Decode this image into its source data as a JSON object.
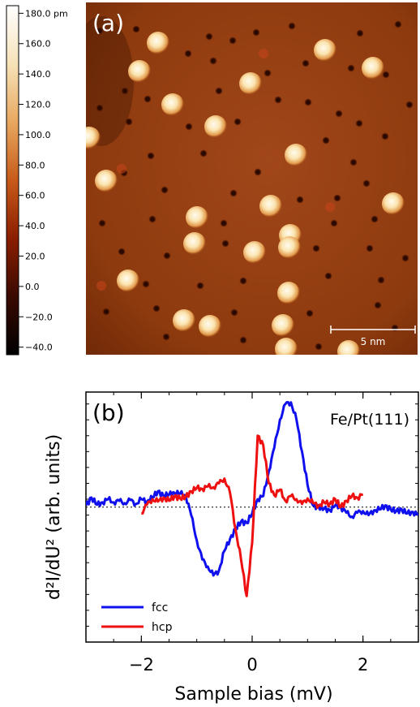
{
  "panel_a": {
    "label": "(a)",
    "scalebar_label": "5 nm",
    "colorbar_ticks": [
      "180.0 pm",
      "160.0",
      "140.0",
      "120.0",
      "100.0",
      "80.0",
      "60.0",
      "40.0",
      "20.0",
      "0.0",
      "−20.0",
      "−40.0"
    ],
    "colorbar_values": [
      180,
      160,
      140,
      120,
      100,
      80,
      60,
      40,
      20,
      0,
      -20,
      -40
    ],
    "colorbar_range": [
      -45,
      185
    ],
    "colormap": [
      "#000000",
      "#3a0a00",
      "#8b1e00",
      "#c75a1a",
      "#e8a860",
      "#f6e2b8",
      "#ffffff"
    ],
    "substrate_color": "#8c3a0c",
    "adatom_color": "#fff3d6"
  },
  "panel_b": {
    "label": "(b)",
    "sample_label": "Fe/Pt(111)"
  },
  "chart_data": {
    "type": "line",
    "xlabel": "Sample bias (mV)",
    "ylabel": "d²I/dU² (arb. units)",
    "xlim": [
      -3,
      3
    ],
    "ylim": [
      -1.7,
      1.45
    ],
    "xticks": [
      -2,
      0,
      2
    ],
    "baseline": 0,
    "series": [
      {
        "name": "fcc",
        "color": "#1010ee",
        "x": [
          -3.0,
          -2.9,
          -2.8,
          -2.7,
          -2.6,
          -2.5,
          -2.4,
          -2.3,
          -2.2,
          -2.1,
          -2.0,
          -1.9,
          -1.8,
          -1.7,
          -1.6,
          -1.5,
          -1.4,
          -1.3,
          -1.2,
          -1.1,
          -1.0,
          -0.9,
          -0.8,
          -0.7,
          -0.6,
          -0.5,
          -0.4,
          -0.3,
          -0.2,
          -0.1,
          0.0,
          0.1,
          0.2,
          0.3,
          0.4,
          0.5,
          0.6,
          0.7,
          0.8,
          0.9,
          1.0,
          1.1,
          1.2,
          1.3,
          1.4,
          1.5,
          1.6,
          1.7,
          1.8,
          1.9,
          2.0,
          2.1,
          2.2,
          2.3,
          2.4,
          2.5,
          2.6,
          2.7,
          2.8,
          2.9,
          3.0
        ],
        "y": [
          0.02,
          0.12,
          0.03,
          0.06,
          0.1,
          0.06,
          0.08,
          0.05,
          0.09,
          0.04,
          0.1,
          0.07,
          0.12,
          0.2,
          0.14,
          0.16,
          0.18,
          0.17,
          0.15,
          -0.1,
          -0.42,
          -0.66,
          -0.75,
          -0.86,
          -0.8,
          -0.55,
          -0.4,
          -0.28,
          -0.18,
          -0.2,
          -0.08,
          0.1,
          0.14,
          0.45,
          0.75,
          1.1,
          1.3,
          1.32,
          1.1,
          0.7,
          0.28,
          0.02,
          0.0,
          -0.02,
          -0.04,
          0.02,
          0.0,
          -0.07,
          -0.12,
          -0.07,
          -0.05,
          -0.1,
          -0.04,
          -0.03,
          0.02,
          -0.03,
          -0.05,
          -0.03,
          -0.08,
          -0.06,
          -0.1
        ]
      },
      {
        "name": "hcp",
        "color": "#ee1010",
        "x": [
          -2.0,
          -1.9,
          -1.8,
          -1.7,
          -1.6,
          -1.5,
          -1.4,
          -1.3,
          -1.2,
          -1.1,
          -1.0,
          -0.9,
          -0.8,
          -0.7,
          -0.6,
          -0.5,
          -0.4,
          -0.3,
          -0.2,
          -0.1,
          0.0,
          0.1,
          0.2,
          0.3,
          0.4,
          0.5,
          0.6,
          0.7,
          0.8,
          0.9,
          1.0,
          1.1,
          1.2,
          1.3,
          1.4,
          1.5,
          1.6,
          1.7,
          1.8,
          1.9,
          2.0
        ],
        "y": [
          -0.08,
          0.03,
          0.1,
          0.07,
          0.12,
          0.08,
          0.14,
          0.11,
          0.13,
          0.2,
          0.24,
          0.23,
          0.26,
          0.25,
          0.3,
          0.36,
          0.18,
          -0.28,
          -0.66,
          -1.12,
          -0.45,
          0.9,
          0.78,
          0.3,
          0.15,
          0.22,
          0.08,
          0.14,
          0.1,
          0.04,
          0.11,
          0.05,
          0.02,
          0.06,
          0.04,
          0.1,
          0.0,
          0.08,
          0.14,
          0.12,
          0.16
        ]
      }
    ]
  }
}
